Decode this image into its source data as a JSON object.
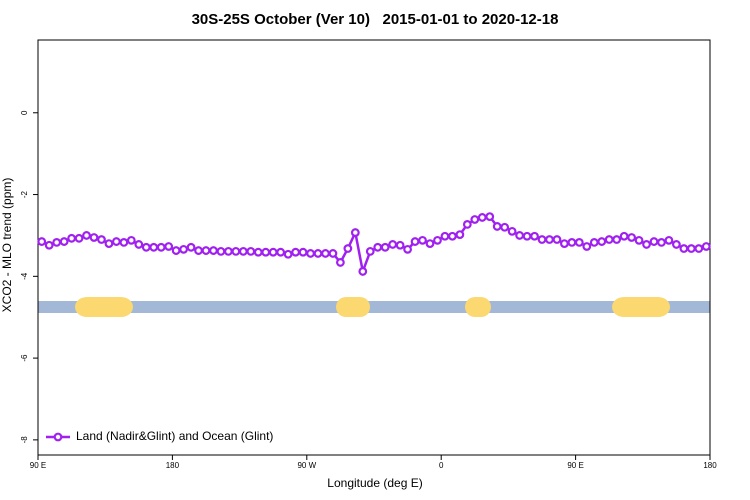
{
  "chart_data": {
    "type": "line",
    "title": "30S-25S October (Ver 10)   2015-01-01 to 2020-12-18",
    "x_label": "Longitude (deg E)",
    "y_label": "XCO2 - MLO trend (ppm)",
    "xlim": [
      90,
      540
    ],
    "xticks": [
      {
        "value": 90,
        "label": "90 E"
      },
      180,
      {
        "value": 270,
        "label": "90 W"
      },
      {
        "value": 360,
        "label": "0"
      },
      {
        "value": 450,
        "label": "90 E"
      },
      {
        "value": 540,
        "label": "180"
      }
    ],
    "ylim": [
      -8.37,
      1.78
    ],
    "yticks": [
      0,
      -2,
      -4,
      -6,
      -8
    ],
    "legend": "bottom-left",
    "x": [
      92.5,
      97.5,
      102.5,
      107.5,
      112.5,
      117.5,
      122.5,
      127.5,
      132.5,
      137.5,
      142.5,
      147.5,
      152.5,
      157.5,
      162.5,
      167.5,
      172.5,
      177.5,
      182.5,
      187.5,
      192.5,
      197.5,
      202.5,
      207.5,
      212.5,
      217.5,
      222.5,
      227.5,
      232.5,
      237.5,
      242.5,
      247.5,
      252.5,
      257.5,
      262.5,
      267.5,
      272.5,
      277.5,
      282.5,
      287.5,
      292.5,
      297.5,
      302.5,
      307.5,
      312.5,
      317.5,
      322.5,
      327.5,
      332.5,
      337.5,
      342.5,
      347.5,
      352.5,
      357.5,
      362.5,
      367.5,
      372.5,
      377.5,
      382.5,
      387.5,
      392.5,
      397.5,
      402.5,
      407.5,
      412.5,
      417.5,
      422.5,
      427.5,
      432.5,
      437.5,
      442.5,
      447.5,
      452.5,
      457.5,
      462.5,
      467.5,
      472.5,
      477.5,
      482.5,
      487.5,
      492.5,
      497.5,
      502.5,
      507.5,
      512.5,
      517.5,
      522.5,
      527.5,
      532.5,
      537.5
    ],
    "series": [
      {
        "name": "Land (Nadir&Glint) and Ocean (Glint)",
        "color": "#a020f0",
        "values": [
          -3.15,
          -3.24,
          -3.17,
          -3.15,
          -3.07,
          -3.07,
          -3.0,
          -3.05,
          -3.1,
          -3.2,
          -3.15,
          -3.17,
          -3.12,
          -3.22,
          -3.29,
          -3.29,
          -3.29,
          -3.27,
          -3.37,
          -3.34,
          -3.29,
          -3.37,
          -3.37,
          -3.37,
          -3.39,
          -3.39,
          -3.39,
          -3.39,
          -3.39,
          -3.41,
          -3.41,
          -3.41,
          -3.41,
          -3.46,
          -3.41,
          -3.41,
          -3.44,
          -3.44,
          -3.44,
          -3.44,
          -3.66,
          -3.32,
          -2.93,
          -3.88,
          -3.39,
          -3.29,
          -3.29,
          -3.22,
          -3.24,
          -3.34,
          -3.15,
          -3.12,
          -3.2,
          -3.12,
          -3.02,
          -3.02,
          -2.98,
          -2.73,
          -2.61,
          -2.56,
          -2.54,
          -2.78,
          -2.8,
          -2.9,
          -3.0,
          -3.02,
          -3.02,
          -3.1,
          -3.1,
          -3.1,
          -3.2,
          -3.17,
          -3.17,
          -3.27,
          -3.17,
          -3.15,
          -3.1,
          -3.1,
          -3.02,
          -3.05,
          -3.12,
          -3.22,
          -3.15,
          -3.17,
          -3.12,
          -3.22,
          -3.32,
          -3.32,
          -3.32,
          -3.27
        ]
      }
    ]
  }
}
